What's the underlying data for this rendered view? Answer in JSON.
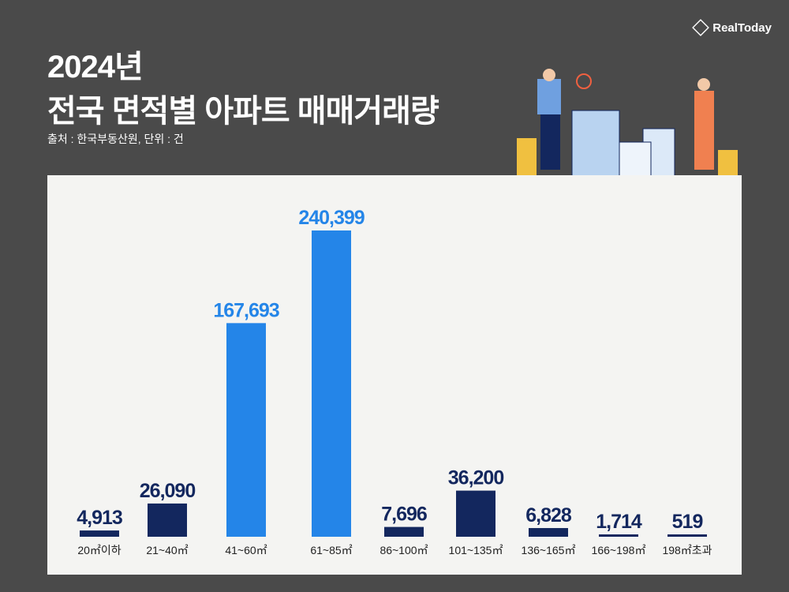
{
  "header": {
    "year_title": "2024년",
    "title": "전국 면적별 아파트 매매거래량",
    "source": "출처 : 한국부동산원, 단위 : 건",
    "brand": "RealToday"
  },
  "colors": {
    "navy": "#13275e",
    "blue": "#2485e8"
  },
  "chart_data": {
    "type": "bar",
    "title": "전국 면적별 아파트 매매거래량",
    "categories": [
      "20㎡이하",
      "21~40㎡",
      "41~60㎡",
      "61~85㎡",
      "86~100㎡",
      "101~135㎡",
      "136~165㎡",
      "166~198㎡",
      "198㎡초과"
    ],
    "values": [
      4913,
      26090,
      167693,
      240399,
      7696,
      36200,
      6828,
      1714,
      519
    ],
    "value_labels": [
      "4,913",
      "26,090",
      "167,693",
      "240,399",
      "7,696",
      "36,200",
      "6,828",
      "1,714",
      "519"
    ],
    "highlight": [
      "41~60㎡",
      "61~85㎡"
    ],
    "grid": false,
    "ylim": [
      0,
      240399
    ]
  }
}
